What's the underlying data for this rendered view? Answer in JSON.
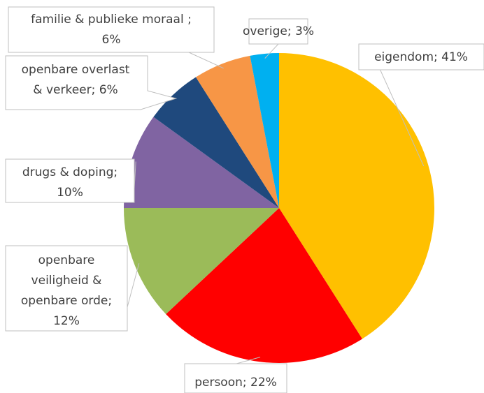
{
  "chart_data": {
    "type": "pie",
    "values": [
      41,
      22,
      12,
      10,
      6,
      6,
      3
    ],
    "value_labels": [
      [
        "eigendom; 41%"
      ],
      [
        "persoon; 22%"
      ],
      [
        "openbare",
        "veiligheid &",
        "openbare orde;",
        "12%"
      ],
      [
        "drugs & doping;",
        "10%"
      ],
      [
        "openbare overlast",
        "& verkeer; 6%"
      ],
      [
        "familie & publieke moraal ;",
        "6%"
      ],
      [
        "overige; 3%"
      ]
    ],
    "colors": [
      "#FFC000",
      "#FF0000",
      "#9BBB59",
      "#8064A2",
      "#1F497D",
      "#F79646",
      "#00B0F0"
    ]
  }
}
